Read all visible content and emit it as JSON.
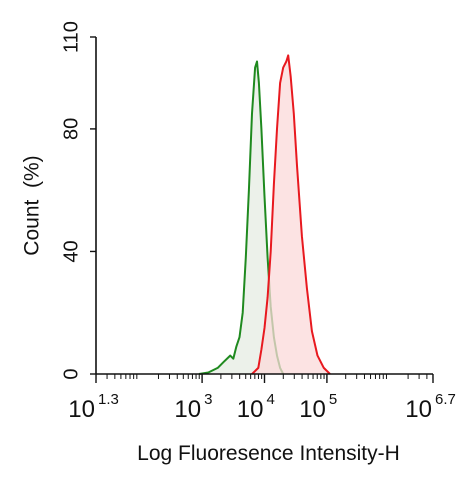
{
  "chart_data": {
    "type": "area",
    "xlabel": "Log Fluoresence Intensity-H",
    "ylabel": "Count  (%)",
    "x_scale": "log10",
    "xlim_exponent": [
      1.3,
      6.7
    ],
    "ylim": [
      0,
      110
    ],
    "y_ticks": [
      "0",
      "40",
      "80",
      "110"
    ],
    "x_ticks": [
      {
        "base": "10",
        "exp": "1.3",
        "value_exp": 1.3
      },
      {
        "base": "10",
        "exp": "3",
        "value_exp": 3
      },
      {
        "base": "10",
        "exp": "4",
        "value_exp": 4
      },
      {
        "base": "10",
        "exp": "5",
        "value_exp": 5
      },
      {
        "base": "10",
        "exp": "6.7",
        "value_exp": 6.7
      }
    ],
    "grid": false,
    "legend": "none",
    "series": [
      {
        "color": "#1f8a1f",
        "fill": "#e6ece3",
        "points": [
          [
            2.95,
            0
          ],
          [
            3.1,
            0.5
          ],
          [
            3.25,
            2
          ],
          [
            3.35,
            4
          ],
          [
            3.45,
            6
          ],
          [
            3.5,
            5
          ],
          [
            3.55,
            9
          ],
          [
            3.6,
            12
          ],
          [
            3.65,
            20
          ],
          [
            3.7,
            38
          ],
          [
            3.75,
            60
          ],
          [
            3.8,
            85
          ],
          [
            3.85,
            100
          ],
          [
            3.88,
            102
          ],
          [
            3.91,
            95
          ],
          [
            3.95,
            80
          ],
          [
            4.0,
            58
          ],
          [
            4.05,
            38
          ],
          [
            4.1,
            22
          ],
          [
            4.15,
            12
          ],
          [
            4.2,
            6
          ],
          [
            4.25,
            2
          ],
          [
            4.3,
            0
          ]
        ]
      },
      {
        "color": "#e8191f",
        "fill": "#fbdada",
        "points": [
          [
            3.8,
            0
          ],
          [
            3.9,
            2
          ],
          [
            3.95,
            8
          ],
          [
            4.0,
            15
          ],
          [
            4.05,
            25
          ],
          [
            4.1,
            40
          ],
          [
            4.15,
            62
          ],
          [
            4.2,
            80
          ],
          [
            4.25,
            95
          ],
          [
            4.3,
            100
          ],
          [
            4.35,
            102
          ],
          [
            4.38,
            104
          ],
          [
            4.42,
            97
          ],
          [
            4.47,
            85
          ],
          [
            4.52,
            68
          ],
          [
            4.6,
            45
          ],
          [
            4.68,
            28
          ],
          [
            4.76,
            14
          ],
          [
            4.85,
            6
          ],
          [
            4.95,
            2
          ],
          [
            5.05,
            0
          ]
        ]
      }
    ]
  }
}
